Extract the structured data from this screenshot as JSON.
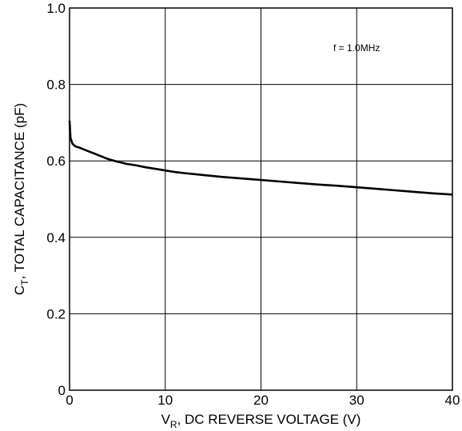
{
  "chart_data": {
    "type": "line",
    "xlim": [
      0,
      40
    ],
    "ylim": [
      0,
      1.0
    ],
    "x_ticks": [
      "0",
      "10",
      "20",
      "30",
      "40"
    ],
    "y_ticks": [
      "0",
      "0.2",
      "0.4",
      "0.6",
      "0.8",
      "1.0"
    ],
    "xlabel": {
      "main": "V",
      "sub": "R",
      "rest": ", DC REVERSE VOLTAGE (V)"
    },
    "ylabel": {
      "main": "C",
      "sub": "T",
      "rest": ", TOTAL CAPACITANCE (pF)"
    },
    "grid": true,
    "annotation": "f = 1.0MHz",
    "series": [
      {
        "x": [
          0,
          0.1,
          0.3,
          0.6,
          1,
          1.5,
          2,
          2.5,
          3,
          4,
          5,
          6,
          7,
          8,
          9,
          10,
          11,
          12,
          14,
          16,
          18,
          20,
          22,
          24,
          26,
          28,
          30,
          32,
          34,
          36,
          38,
          40
        ],
        "y": [
          0.705,
          0.66,
          0.645,
          0.638,
          0.635,
          0.63,
          0.625,
          0.62,
          0.615,
          0.605,
          0.598,
          0.592,
          0.588,
          0.583,
          0.579,
          0.575,
          0.571,
          0.568,
          0.563,
          0.558,
          0.554,
          0.55,
          0.546,
          0.542,
          0.538,
          0.535,
          0.531,
          0.527,
          0.523,
          0.519,
          0.515,
          0.512
        ]
      }
    ]
  }
}
